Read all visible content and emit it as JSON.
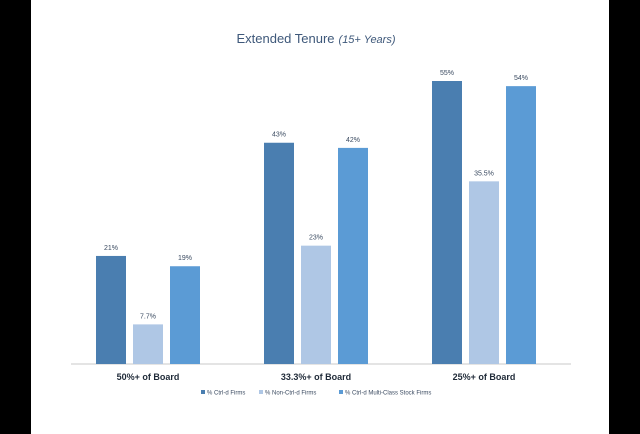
{
  "chart_data": {
    "type": "bar",
    "title": "Extended Tenure",
    "subtitle": "(15+ Years)",
    "categories": [
      "50%+ of Board",
      "33.3%+ of Board",
      "25%+ of Board"
    ],
    "series": [
      {
        "name": "% Ctrl-d Firms",
        "values": [
          21,
          43,
          55
        ],
        "labels": [
          "21%",
          "43%",
          "55%"
        ],
        "color": "#4a7eb0"
      },
      {
        "name": "% Non-Ctrl-d Firms",
        "values": [
          7.7,
          23,
          35.5
        ],
        "labels": [
          "7.7%",
          "23%",
          "35.5%"
        ],
        "color": "#afc7e5"
      },
      {
        "name": "% Ctrl-d Multi-Class Stock Firms",
        "values": [
          19,
          42,
          54
        ],
        "labels": [
          "19%",
          "42%",
          "54%"
        ],
        "color": "#5b9bd5"
      }
    ],
    "ylim": [
      0,
      60
    ],
    "grid": false,
    "legend": "bottom"
  }
}
